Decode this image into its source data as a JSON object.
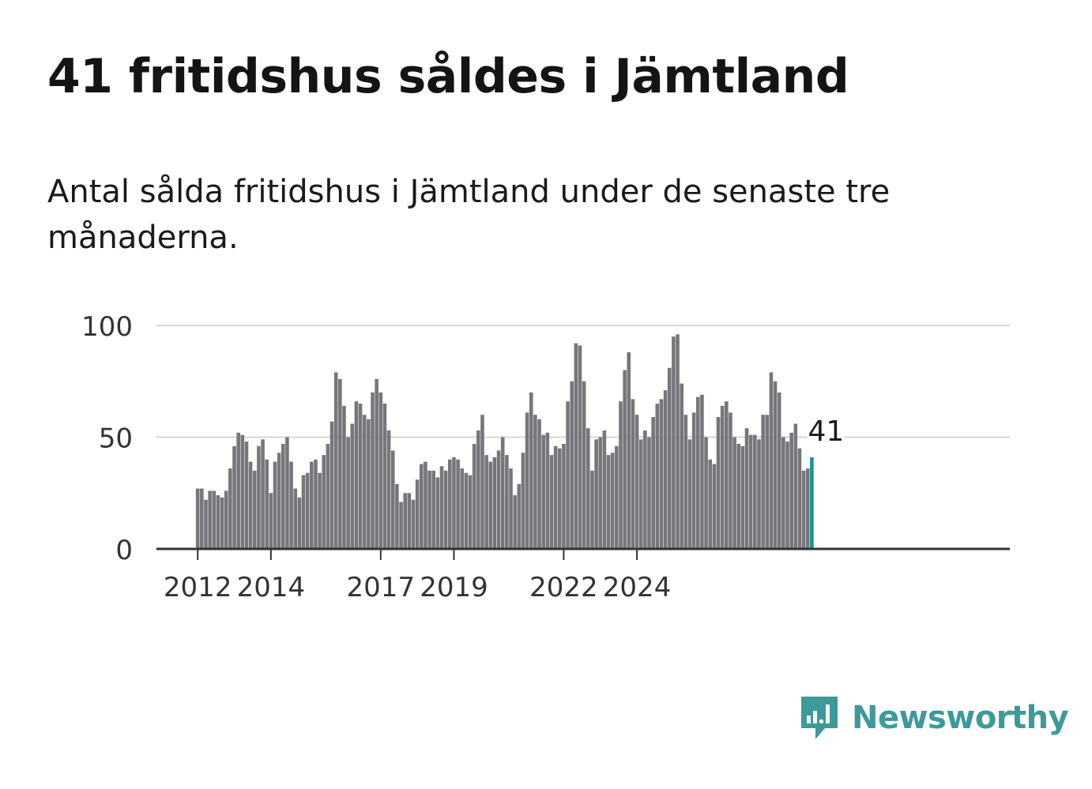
{
  "title": "41 fritidshus såldes i Jämtland",
  "subtitle": "Antal sålda fritidshus i Jämtland under de senaste tre månaderna.",
  "brand": {
    "name": "Newsworthy",
    "color": "#3d9a98",
    "icon": "newsworthy-logo-icon"
  },
  "colors": {
    "bar": "#77767b",
    "highlight": "#14968f",
    "grid": "#dddddd",
    "axis": "#333333"
  },
  "chart_data": {
    "type": "bar",
    "yticks": [
      0,
      50,
      100
    ],
    "ylim": [
      0,
      100
    ],
    "xticks": [
      {
        "label": "2012",
        "index": 0
      },
      {
        "label": "2014",
        "index": 18
      },
      {
        "label": "2017",
        "index": 45
      },
      {
        "label": "2019",
        "index": 63
      },
      {
        "label": "2022",
        "index": 90
      },
      {
        "label": "2024",
        "index": 108
      }
    ],
    "grid": true,
    "highlight_label": "41",
    "values": [
      27,
      27,
      22,
      26,
      26,
      24,
      23,
      26,
      36,
      46,
      52,
      51,
      48,
      39,
      35,
      46,
      49,
      40,
      25,
      39,
      43,
      47,
      50,
      39,
      27,
      23,
      33,
      34,
      39,
      40,
      34,
      42,
      47,
      57,
      79,
      76,
      64,
      50,
      56,
      66,
      65,
      60,
      58,
      70,
      76,
      70,
      65,
      53,
      44,
      29,
      21,
      25,
      25,
      22,
      31,
      38,
      39,
      35,
      35,
      32,
      37,
      35,
      40,
      41,
      40,
      36,
      34,
      33,
      47,
      53,
      60,
      42,
      39,
      41,
      44,
      50,
      42,
      36,
      24,
      29,
      43,
      61,
      70,
      60,
      58,
      51,
      52,
      42,
      46,
      45,
      47,
      66,
      75,
      92,
      91,
      75,
      54,
      35,
      49,
      50,
      53,
      42,
      43,
      46,
      66,
      80,
      88,
      67,
      60,
      49,
      53,
      50,
      59,
      65,
      67,
      71,
      81,
      95,
      96,
      74,
      60,
      49,
      61,
      68,
      69,
      50,
      40,
      38,
      59,
      64,
      66,
      61,
      50,
      47,
      46,
      54,
      51,
      51,
      49,
      60,
      60,
      79,
      75,
      70,
      50,
      48,
      52,
      56,
      45,
      35,
      36,
      41
    ]
  }
}
